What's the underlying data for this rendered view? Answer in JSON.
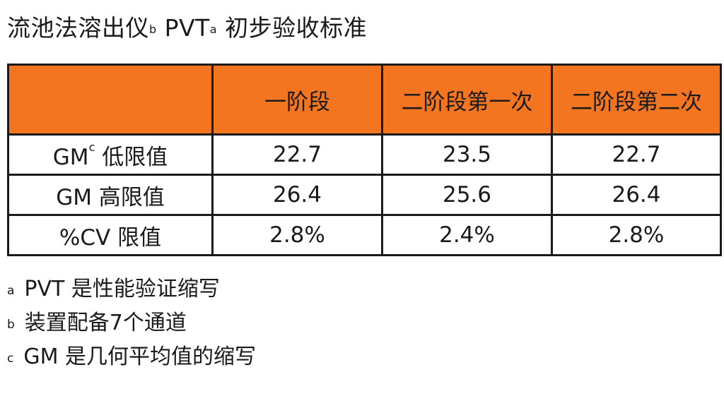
{
  "title": {
    "part1": "流池法溶出仪",
    "sup1": "b",
    "part2": " PVT",
    "sup2": "a",
    "part3": " 初步验收标准"
  },
  "table": {
    "headers": [
      "",
      "一阶段",
      "二阶段第一次",
      "二阶段第二次"
    ],
    "rows": [
      {
        "label": "GM",
        "label_sup": "c",
        "label_rest": " 低限值",
        "values": [
          "22.7",
          "23.5",
          "22.7"
        ]
      },
      {
        "label": "GM 高限值",
        "label_sup": "",
        "label_rest": "",
        "values": [
          "26.4",
          "25.6",
          "26.4"
        ]
      },
      {
        "label": "%CV 限值",
        "label_sup": "",
        "label_rest": "",
        "values": [
          "2.8%",
          "2.4%",
          "2.8%"
        ]
      }
    ]
  },
  "footnotes": [
    {
      "marker": "a",
      "text": "PVT 是性能验证缩写"
    },
    {
      "marker": "b",
      "text": "装置配备7个通道"
    },
    {
      "marker": "c",
      "text": "GM 是几何平均值的缩写"
    }
  ],
  "colors": {
    "header_fill": "#f47520",
    "border": "#1a1a1a"
  }
}
